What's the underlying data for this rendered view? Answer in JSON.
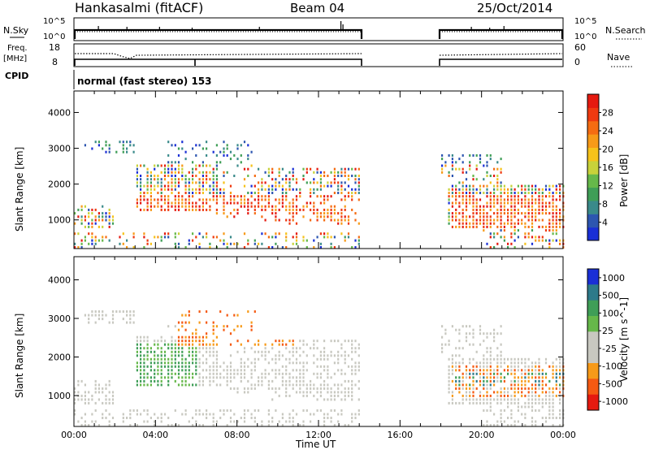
{
  "header": {
    "station": "Hankasalmi (fitACF)",
    "beam": "Beam 04",
    "date": "25/Oct/2014",
    "mode": "normal (fast stereo) 153"
  },
  "strips": {
    "sky_label": "N.Sky",
    "sky_ticks": [
      "10^5",
      "10^0"
    ],
    "search_label": "N.Search",
    "search_ticks": [
      "10^5",
      "10^0"
    ],
    "freq_label": "Freq.",
    "freq_unit": "[MHz]",
    "freq_ticks": [
      "18",
      "8"
    ],
    "nave_label": "Nave",
    "nave_ticks": [
      "60",
      "0"
    ],
    "cpid_label": "CPID"
  },
  "colors": {
    "power_scale": [
      "#1a2fd6",
      "#2d56b0",
      "#3a8a8a",
      "#3f9e57",
      "#66b84a",
      "#c8d23a",
      "#f6c21a",
      "#f79a18",
      "#f56c12",
      "#ef3a10",
      "#e51a10"
    ],
    "velocity_scale": [
      "#e51a10",
      "#f55a12",
      "#f79a18",
      "#c8c8c0",
      "#c8c8c0",
      "#66b84a",
      "#3f9e57",
      "#2d7a8a",
      "#1a2fd6"
    ]
  },
  "chart_data": [
    {
      "type": "heatmap",
      "title": "Power",
      "xlabel": "Time UT",
      "ylabel": "Slant Range [km]",
      "x_ticks": [
        "00:00",
        "04:00",
        "08:00",
        "12:00",
        "16:00",
        "20:00",
        "00:00"
      ],
      "y_ticks": [
        "1000",
        "2000",
        "3000",
        "4000"
      ],
      "ylim": [
        200,
        4600
      ],
      "xlim_hours": [
        0,
        24
      ],
      "colorbar_label": "Power [dB]",
      "colorbar_ticks": [
        "4",
        "8",
        "12",
        "16",
        "20",
        "24",
        "28"
      ],
      "data_gap_hours": [
        14,
        18
      ]
    },
    {
      "type": "heatmap",
      "title": "Velocity",
      "xlabel": "Time UT",
      "ylabel": "Slant Range [km]",
      "x_ticks": [
        "00:00",
        "04:00",
        "08:00",
        "12:00",
        "16:00",
        "20:00",
        "00:00"
      ],
      "y_ticks": [
        "1000",
        "2000",
        "3000",
        "4000"
      ],
      "ylim": [
        200,
        4600
      ],
      "xlim_hours": [
        0,
        24
      ],
      "colorbar_label": "Velocity [m s^-1]",
      "colorbar_ticks": [
        "1000",
        "500",
        "100",
        "25",
        "-25",
        "-100",
        "-500",
        "-1000"
      ],
      "data_gap_hours": [
        14,
        18
      ]
    }
  ]
}
